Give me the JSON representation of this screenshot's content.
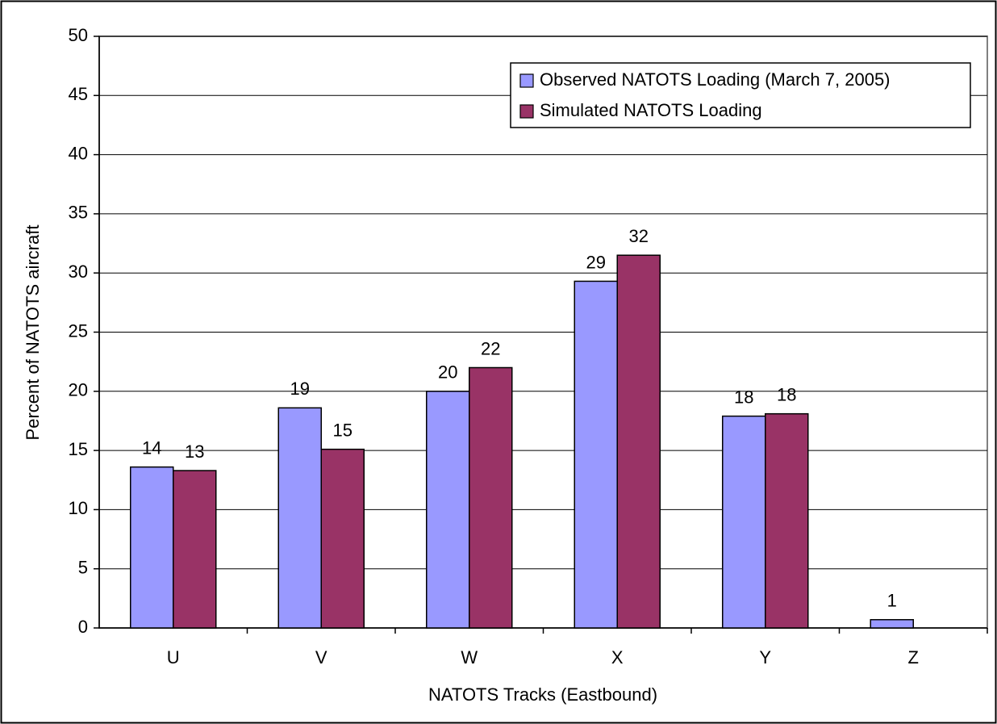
{
  "chart_data": {
    "type": "bar",
    "x_label": "NATOTS Tracks (Eastbound)",
    "y_label": "Percent of NATOTS aircraft",
    "categories": [
      "U",
      "V",
      "W",
      "X",
      "Y",
      "Z"
    ],
    "series": [
      {
        "name": "Observed NATOTS Loading (March 7, 2005)",
        "color": "#9999ff",
        "values": [
          13.6,
          18.6,
          20,
          29.3,
          17.9,
          0.7
        ],
        "value_labels": [
          "14",
          "19",
          "20",
          "29",
          "18",
          "1"
        ]
      },
      {
        "name": "Simulated NATOTS Loading",
        "color": "#993366",
        "values": [
          13.3,
          15.1,
          22,
          31.5,
          18.1,
          null
        ],
        "value_labels": [
          "13",
          "15",
          "22",
          "32",
          "18",
          null
        ]
      }
    ],
    "ylim": [
      0,
      50
    ],
    "yticks": [
      0,
      5,
      10,
      15,
      20,
      25,
      30,
      35,
      40,
      45,
      50
    ],
    "grid": true,
    "legend": "top-right"
  }
}
